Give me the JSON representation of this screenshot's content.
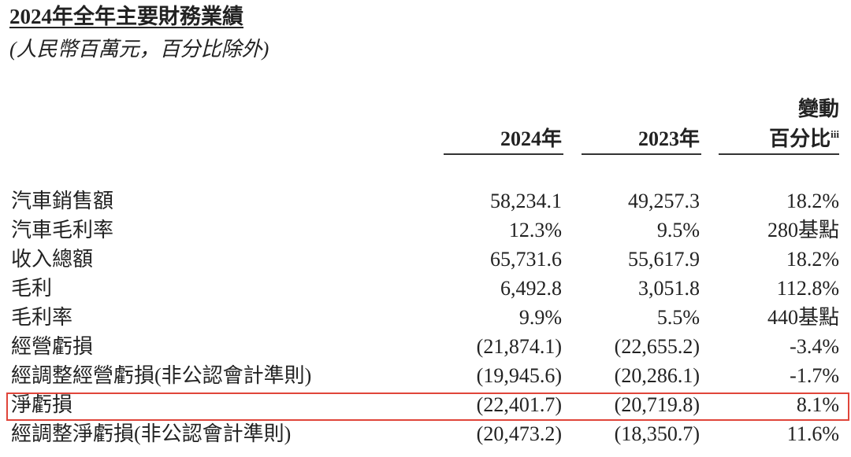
{
  "header": {
    "title": "2024年全年主要財務業績",
    "subtitle": "(人民幣百萬元，百分比除外)"
  },
  "table": {
    "columns": [
      "2024年",
      "2023年"
    ],
    "change_header": {
      "line1": "變動",
      "line2": "百分比",
      "note": "iii"
    },
    "rows": [
      [
        "汽車銷售額",
        "58,234.1",
        "49,257.3",
        "18.2%"
      ],
      [
        "汽車毛利率",
        "12.3%",
        "9.5%",
        "280基點"
      ],
      [
        "收入總額",
        "65,731.6",
        "55,617.9",
        "18.2%"
      ],
      [
        "毛利",
        "6,492.8",
        "3,051.8",
        "112.8%"
      ],
      [
        "毛利率",
        "9.9%",
        "5.5%",
        "440基點"
      ],
      [
        "經營虧損",
        "(21,874.1)",
        "(22,655.2)",
        "-3.4%"
      ],
      [
        "經調整經營虧損(非公認會計準則)",
        "(19,945.6)",
        "(20,286.1)",
        "-1.7%"
      ],
      [
        "淨虧損",
        "(22,401.7)",
        "(20,719.8)",
        "8.1%"
      ],
      [
        "經調整淨虧損(非公認會計準則)",
        "(20,473.2)",
        "(18,350.7)",
        "11.6%"
      ]
    ]
  }
}
